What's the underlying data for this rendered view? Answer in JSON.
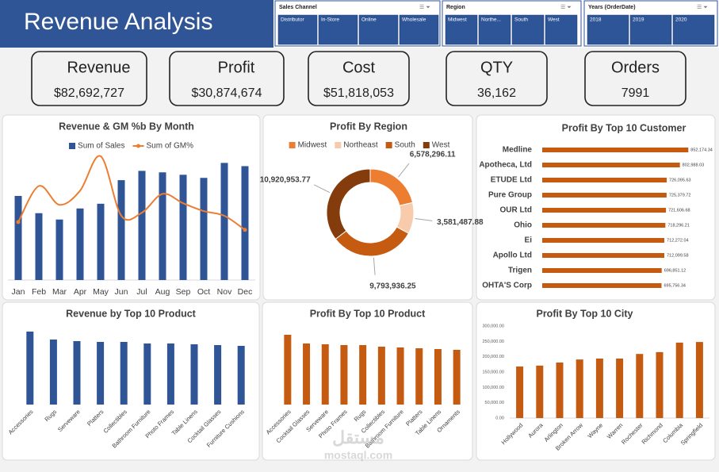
{
  "header": {
    "title": "Revenue Analysis"
  },
  "slicers": [
    {
      "title": "Sales Channel",
      "items": [
        "Distributor",
        "In-Store",
        "Online",
        "Wholesale"
      ]
    },
    {
      "title": "Region",
      "items": [
        "Midwest",
        "Northe...",
        "South",
        "West"
      ]
    },
    {
      "title": "Years (OrderDate)",
      "items": [
        "2018",
        "2019",
        "2020"
      ]
    }
  ],
  "kpis": [
    {
      "label": "Revenue",
      "value": "$82,692,727"
    },
    {
      "label": "Profit",
      "value": "$30,874,674"
    },
    {
      "label": "Cost",
      "value": "$51,818,053"
    },
    {
      "label": "QTY",
      "value": "36,162"
    },
    {
      "label": "Orders",
      "value": "7991"
    }
  ],
  "chart_data": [
    {
      "type": "bar_line",
      "title": "Revenue & GM  %b By Month",
      "categories": [
        "Jan",
        "Feb",
        "Mar",
        "Apr",
        "May",
        "Jun",
        "Jul",
        "Aug",
        "Sep",
        "Oct",
        "Nov",
        "Dec"
      ],
      "series": [
        {
          "name": "Sum of Sales",
          "type": "bar",
          "color": "#2f5597",
          "values": [
            6240000,
            4960000,
            4490000,
            5310000,
            5660000,
            7410000,
            8100000,
            7990000,
            7810000,
            7580000,
            8690000,
            8450000
          ]
        },
        {
          "name": "Sum of GM%",
          "type": "line",
          "axis": "y2",
          "color": "#ed7d31",
          "values": [
            36.2,
            38.5,
            37.3,
            38.2,
            40.4,
            36.6,
            36.8,
            38.0,
            37.4,
            36.9,
            36.6,
            35.7
          ]
        }
      ],
      "ylim": [
        0,
        9300000
      ],
      "y2lim": [
        32.5,
        40.5
      ]
    },
    {
      "type": "donut",
      "title": "Profit By Region",
      "categories": [
        "Midwest",
        "Northeast",
        "South",
        "West"
      ],
      "values": [
        6578296.11,
        3581487.88,
        9793936.25,
        10920953.77
      ],
      "value_labels": [
        "6,578,296.11",
        "3,581,487.88",
        "9,793,936.25",
        "10,920,953.77"
      ],
      "colors": [
        "#ed7d31",
        "#f8cbad",
        "#c55a11",
        "#843c0c"
      ]
    },
    {
      "type": "hbar",
      "title": "Profit By Top 10 Customer",
      "categories": [
        "Medline",
        "Apotheca, Ltd",
        "ETUDE Ltd",
        "Pure Group",
        "OUR Ltd",
        "Ohio",
        "Ei",
        "Apollo Ltd",
        "Trigen",
        "OHTA'S Corp"
      ],
      "values": [
        852174.34,
        802988.03,
        726095.63,
        725379.72,
        721606.68,
        718296.21,
        712272.04,
        712099.58,
        696851.12,
        695756.34
      ],
      "value_labels": [
        "852,174.34",
        "802,988.03",
        "726,095.63",
        "725,379.72",
        "721,606.68",
        "718,296.21",
        "712,272.04",
        "712,099.58",
        "696,851.12",
        "695,756.34"
      ],
      "color": "#c55a11",
      "xlim": [
        0,
        860000
      ]
    },
    {
      "type": "bar",
      "title": "Revenue by Top 10 Product",
      "categories": [
        "Accessories",
        "Rugs",
        "Serveware",
        "Platters",
        "Collectibles",
        "Bathroom Furniture",
        "Photo Frames",
        "Table Linens",
        "Cocktail Glasses",
        "Furniture Cushions"
      ],
      "values": [
        92,
        82,
        80,
        79,
        79,
        77,
        77,
        76,
        75,
        74
      ],
      "color": "#2f5597",
      "ylim": [
        0,
        100
      ]
    },
    {
      "type": "bar",
      "title": "Profit By Top 10 Product",
      "categories": [
        "Accessories",
        "Cocktail Glasses",
        "Serveware",
        "Photo Frames",
        "Rugs",
        "Collectibles",
        "Bathroom Furniture",
        "Platters",
        "Table Linens",
        "Ornaments"
      ],
      "values": [
        88,
        77,
        76,
        75,
        75,
        73,
        72,
        71,
        70,
        69
      ],
      "color": "#c55a11",
      "ylim": [
        0,
        100
      ]
    },
    {
      "type": "bar",
      "title": "Profit By Top 10 City",
      "categories": [
        "Hollywood",
        "Aurora",
        "Arlington",
        "Broken Arrow",
        "Wayne",
        "Warren",
        "Rochester",
        "Richmond",
        "Columbia",
        "Springfield"
      ],
      "values": [
        168000,
        171000,
        181000,
        191000,
        194000,
        194000,
        209000,
        215000,
        246000,
        248000
      ],
      "color": "#c55a11",
      "ylim": [
        0,
        300000
      ],
      "yticks": [
        {
          "value": 0,
          "label": "0.00"
        },
        {
          "value": 50000,
          "label": "50,000.00"
        },
        {
          "value": 100000,
          "label": "100,000.00"
        },
        {
          "value": 150000,
          "label": "150,000.00"
        },
        {
          "value": 200000,
          "label": "200,000.00"
        },
        {
          "value": 250000,
          "label": "250,000.00"
        },
        {
          "value": 300000,
          "label": "300,000.00"
        }
      ]
    }
  ],
  "watermark": [
    "مستقل",
    "mostaql.com"
  ]
}
